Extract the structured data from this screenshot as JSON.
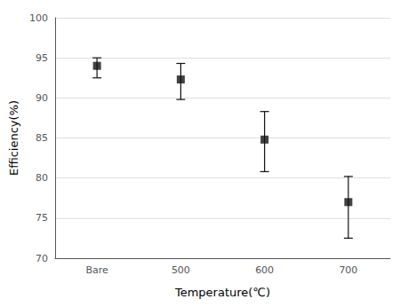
{
  "chart_data": {
    "type": "scatter",
    "xlabel": "Temperature(℃)",
    "ylabel": "Efficiency(%)",
    "categories": [
      "Bare",
      "500",
      "600",
      "700"
    ],
    "values": [
      94.0,
      92.3,
      84.8,
      77.0
    ],
    "err_up": [
      1.0,
      2.0,
      3.5,
      3.2
    ],
    "err_down": [
      1.5,
      2.5,
      4.0,
      4.5
    ],
    "color": "#111111",
    "marker": "square",
    "ylim": [
      70,
      100
    ],
    "yticks": [
      70,
      75,
      80,
      85,
      90,
      95,
      100
    ],
    "grid": true
  }
}
